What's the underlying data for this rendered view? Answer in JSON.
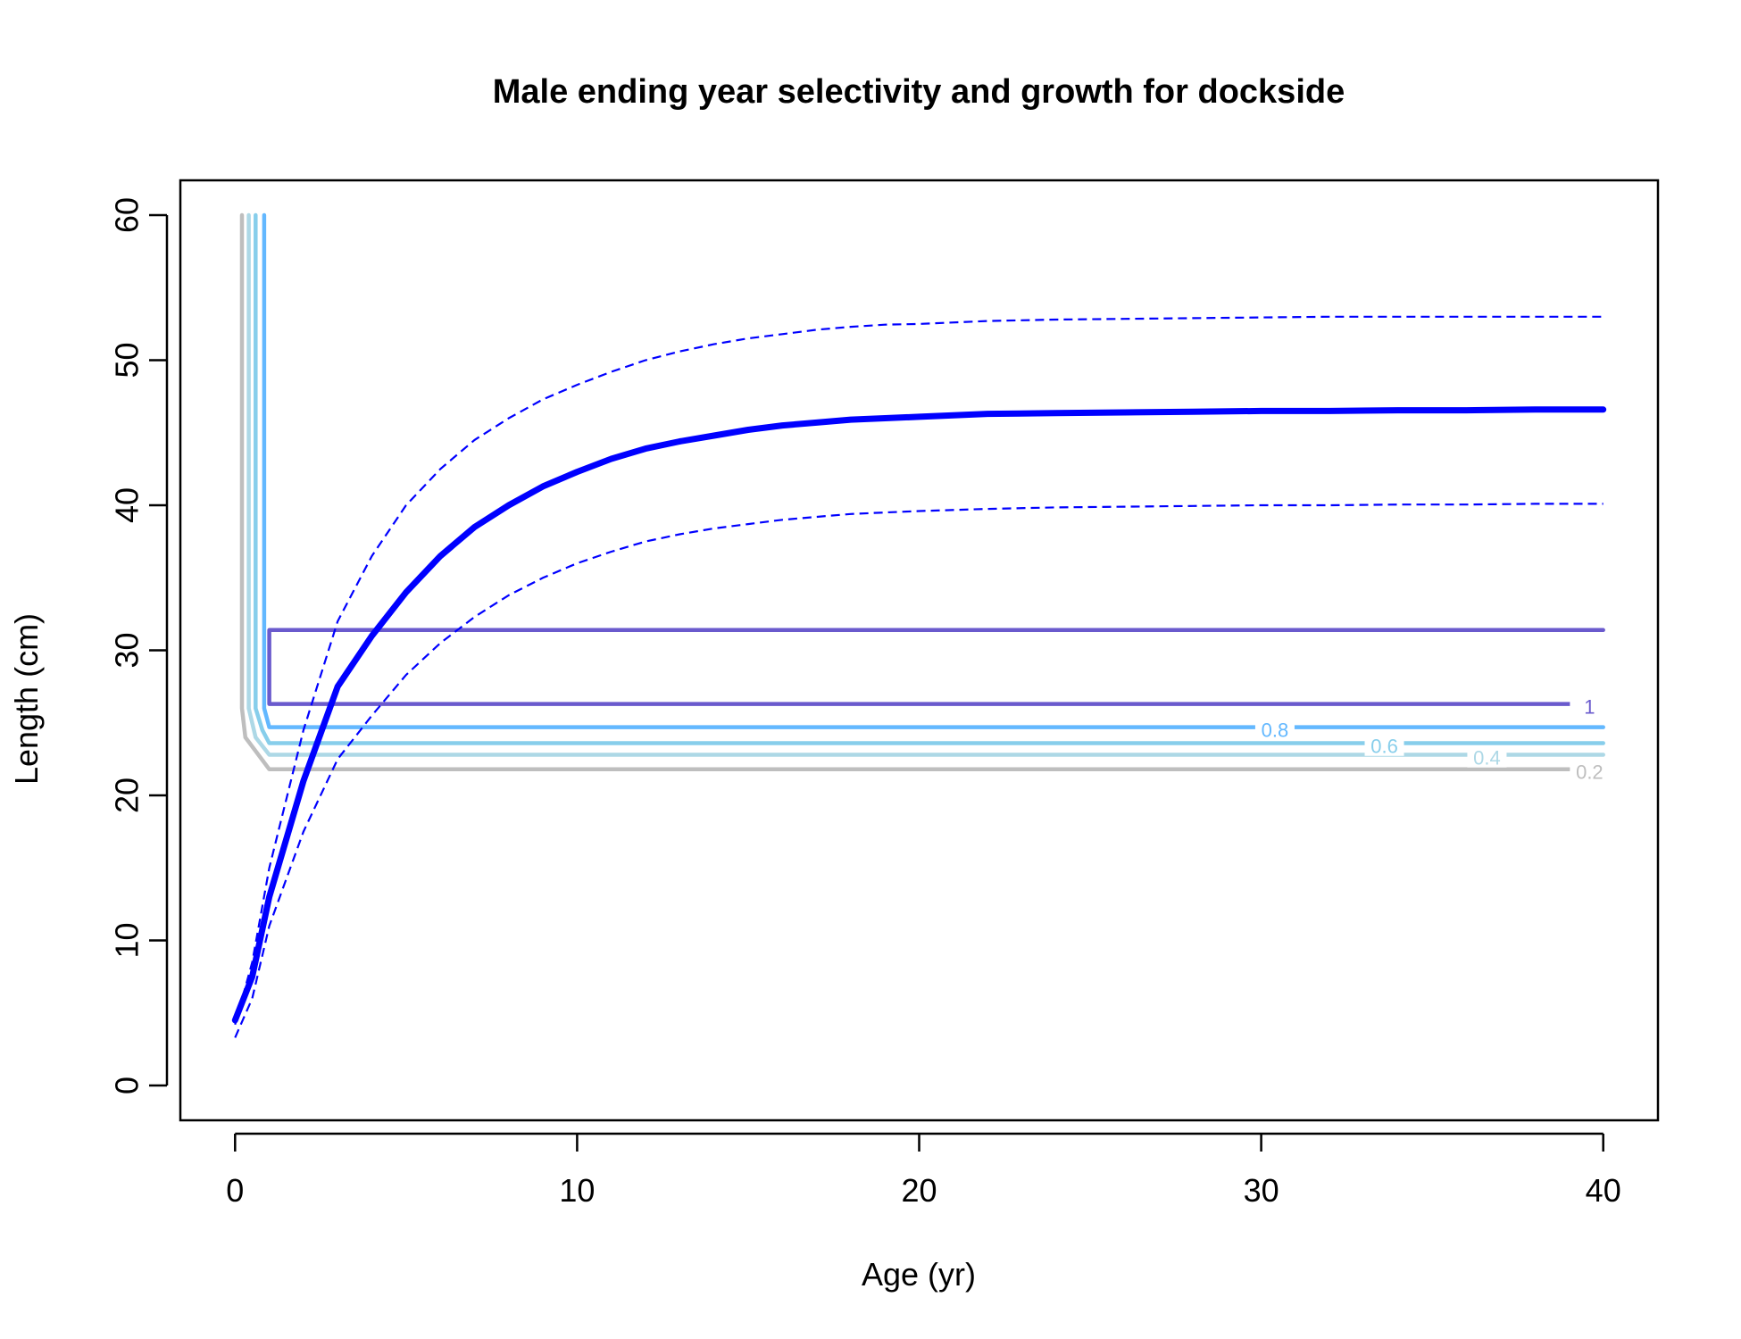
{
  "chart_data": {
    "type": "line",
    "title": "Male ending year selectivity and growth for dockside",
    "xlabel": "Age (yr)",
    "ylabel": "Length (cm)",
    "xlim": [
      -1.6,
      41.6
    ],
    "ylim": [
      -2.4,
      62.4
    ],
    "xticks": [
      0,
      10,
      20,
      30,
      40
    ],
    "yticks": [
      0,
      10,
      20,
      30,
      40,
      50,
      60
    ],
    "grid": false,
    "legend": "none",
    "growth": {
      "color": "#0000ff",
      "mean": {
        "x": [
          0,
          0.5,
          1,
          2,
          3,
          4,
          5,
          6,
          7,
          8,
          9,
          10,
          11,
          12,
          13,
          14,
          15,
          16,
          17,
          18,
          19,
          20,
          22,
          24,
          26,
          28,
          30,
          32,
          34,
          36,
          38,
          40
        ],
        "y": [
          4.5,
          7.5,
          13,
          21,
          27.5,
          31,
          34,
          36.5,
          38.5,
          40,
          41.3,
          42.3,
          43.2,
          43.9,
          44.4,
          44.8,
          45.2,
          45.5,
          45.7,
          45.9,
          46.0,
          46.1,
          46.3,
          46.35,
          46.4,
          46.45,
          46.5,
          46.5,
          46.55,
          46.55,
          46.6,
          46.6
        ]
      },
      "upper": {
        "x": [
          0,
          0.5,
          1,
          2,
          3,
          4,
          5,
          6,
          7,
          8,
          9,
          10,
          11,
          12,
          13,
          14,
          15,
          16,
          17,
          18,
          19,
          20,
          22,
          24,
          26,
          28,
          30,
          32,
          34,
          36,
          38,
          40
        ],
        "y": [
          4.2,
          8.5,
          15,
          24.5,
          32,
          36.5,
          40,
          42.5,
          44.5,
          46,
          47.3,
          48.3,
          49.2,
          50,
          50.6,
          51.1,
          51.5,
          51.8,
          52.1,
          52.3,
          52.45,
          52.5,
          52.7,
          52.8,
          52.85,
          52.9,
          52.95,
          53.0,
          53.0,
          53.0,
          53.0,
          53.0
        ]
      },
      "lower": {
        "x": [
          0,
          0.5,
          1,
          2,
          3,
          4,
          5,
          6,
          7,
          8,
          9,
          10,
          11,
          12,
          13,
          14,
          15,
          16,
          17,
          18,
          19,
          20,
          22,
          24,
          26,
          28,
          30,
          32,
          34,
          36,
          38,
          40
        ],
        "y": [
          3.3,
          6,
          11,
          17.5,
          22.5,
          25.5,
          28.3,
          30.5,
          32.3,
          33.8,
          35,
          36,
          36.8,
          37.5,
          38,
          38.4,
          38.7,
          39,
          39.2,
          39.4,
          39.5,
          39.6,
          39.75,
          39.85,
          39.9,
          39.95,
          40.0,
          40.0,
          40.05,
          40.05,
          40.1,
          40.1
        ]
      }
    },
    "selectivity_contours": [
      {
        "level": 0.2,
        "label": "0.2",
        "color": "#bebebe",
        "x": [
          0.2,
          0.2,
          0.3,
          1,
          39
        ],
        "y": [
          60,
          26,
          24,
          21.8,
          21.8
        ]
      },
      {
        "level": 0.4,
        "label": "0.4",
        "color": "#add8e6",
        "x": [
          0.4,
          0.4,
          0.6,
          1,
          40
        ],
        "y": [
          60,
          26,
          24,
          22.8,
          22.8
        ]
      },
      {
        "level": 0.6,
        "label": "0.6",
        "color": "#87ceeb",
        "x": [
          0.6,
          0.6,
          0.8,
          1,
          40
        ],
        "y": [
          60,
          26,
          24.5,
          23.6,
          23.6
        ]
      },
      {
        "level": 0.8,
        "label": "0.8",
        "color": "#63b8ff",
        "x": [
          0.85,
          0.85,
          1,
          40
        ],
        "y": [
          60,
          26,
          24.7,
          24.7
        ]
      },
      {
        "level": 1,
        "label": "1",
        "color": "#6a5acd",
        "x": [
          40,
          1,
          1,
          39.2
        ],
        "y": [
          31.4,
          31.4,
          26.3,
          26.3
        ]
      }
    ],
    "contour_label_positions": [
      {
        "label": "0.2",
        "x": 39.6,
        "y": 21.6
      },
      {
        "label": "0.4",
        "x": 36.6,
        "y": 22.6
      },
      {
        "label": "0.6",
        "x": 33.6,
        "y": 23.4
      },
      {
        "label": "0.8",
        "x": 30.4,
        "y": 24.5
      },
      {
        "label": "1",
        "x": 39.6,
        "y": 26.1
      }
    ]
  }
}
